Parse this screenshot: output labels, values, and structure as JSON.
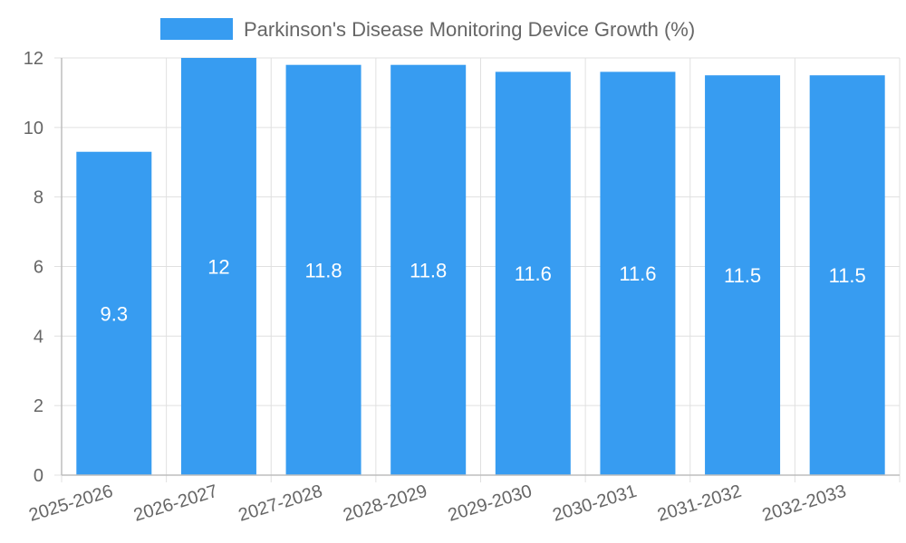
{
  "chart_data": {
    "type": "bar",
    "title": "",
    "xlabel": "",
    "ylabel": "",
    "categories": [
      "2025-2026",
      "2026-2027",
      "2027-2028",
      "2028-2029",
      "2029-2030",
      "2030-2031",
      "2031-2032",
      "2032-2033"
    ],
    "series": [
      {
        "name": "Parkinson's Disease Monitoring Device Growth (%)",
        "values": [
          9.3,
          12,
          11.8,
          11.8,
          11.6,
          11.6,
          11.5,
          11.5
        ],
        "color": "#379cf1"
      }
    ],
    "data_labels": [
      "9.3",
      "12",
      "11.8",
      "11.8",
      "11.6",
      "11.6",
      "11.5",
      "11.5"
    ],
    "ylim": [
      0,
      12
    ],
    "yticks": [
      0,
      2,
      4,
      6,
      8,
      10,
      12
    ],
    "grid": true,
    "legend_position": "top-center"
  },
  "colors": {
    "grid": "#e0e0e0",
    "axis": "#bdbdbd",
    "text": "#666666",
    "label": "#ffffff"
  }
}
